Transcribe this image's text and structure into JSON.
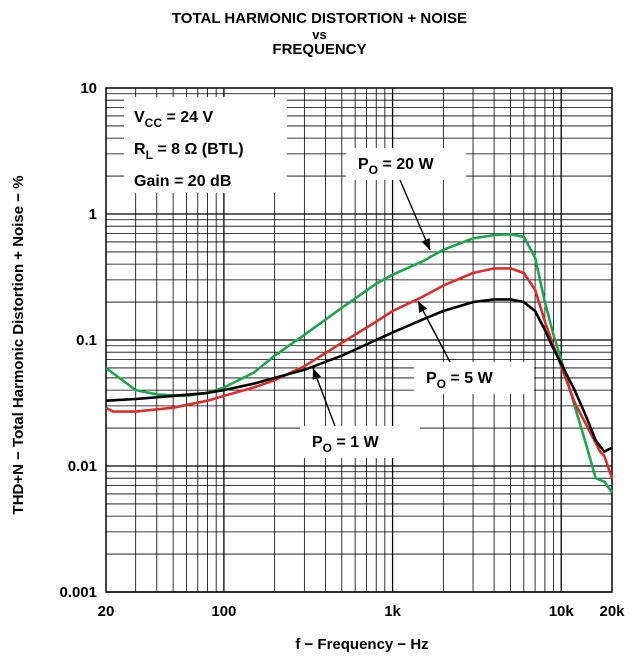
{
  "chart_data": {
    "type": "line",
    "title": [
      "TOTAL HARMONIC DISTORTION + NOISE",
      "vs",
      "FREQUENCY"
    ],
    "xlabel": "f − Frequency − Hz",
    "ylabel": "THD+N − Total Harmonic Distortion + Noise − %",
    "x_scale": "log",
    "y_scale": "log",
    "xlim": [
      20,
      20000
    ],
    "ylim": [
      0.001,
      10
    ],
    "x_ticks": [
      {
        "value": 20,
        "label": "20"
      },
      {
        "value": 100,
        "label": "100"
      },
      {
        "value": 1000,
        "label": "1k"
      },
      {
        "value": 10000,
        "label": "10k"
      },
      {
        "value": 20000,
        "label": "20k"
      }
    ],
    "y_ticks": [
      {
        "value": 0.001,
        "label": "0.001"
      },
      {
        "value": 0.01,
        "label": "0.01"
      },
      {
        "value": 0.1,
        "label": "0.1"
      },
      {
        "value": 1,
        "label": "1"
      },
      {
        "value": 10,
        "label": "10"
      }
    ],
    "grid": true,
    "conditions": {
      "vcc": {
        "main": "V",
        "sub": "CC",
        "rest": " = 24 V"
      },
      "rl": {
        "main": "R",
        "sub": "L",
        "rest": " = 8 Ω (BTL)"
      },
      "gain": "Gain = 20 dB"
    },
    "series": [
      {
        "name": "P_O = 20 W",
        "label": {
          "main": "P",
          "sub": "O",
          "rest": " = 20 W"
        },
        "color": "#1aa84a",
        "points": [
          [
            20,
            0.06
          ],
          [
            25,
            0.048
          ],
          [
            30,
            0.04
          ],
          [
            40,
            0.037
          ],
          [
            60,
            0.036
          ],
          [
            80,
            0.038
          ],
          [
            100,
            0.042
          ],
          [
            150,
            0.055
          ],
          [
            200,
            0.075
          ],
          [
            300,
            0.11
          ],
          [
            500,
            0.18
          ],
          [
            800,
            0.28
          ],
          [
            1000,
            0.33
          ],
          [
            1500,
            0.42
          ],
          [
            2000,
            0.52
          ],
          [
            3000,
            0.64
          ],
          [
            4000,
            0.68
          ],
          [
            5000,
            0.69
          ],
          [
            6000,
            0.66
          ],
          [
            7000,
            0.45
          ],
          [
            8000,
            0.2
          ],
          [
            9000,
            0.11
          ],
          [
            10000,
            0.07
          ],
          [
            12000,
            0.03
          ],
          [
            14000,
            0.015
          ],
          [
            16000,
            0.008
          ],
          [
            18000,
            0.0075
          ],
          [
            20000,
            0.0062
          ]
        ]
      },
      {
        "name": "P_O = 5 W",
        "label": {
          "main": "P",
          "sub": "O",
          "rest": " = 5 W"
        },
        "color": "#e02b2b",
        "points": [
          [
            20,
            0.029
          ],
          [
            22,
            0.027
          ],
          [
            30,
            0.027
          ],
          [
            50,
            0.029
          ],
          [
            80,
            0.033
          ],
          [
            100,
            0.036
          ],
          [
            150,
            0.042
          ],
          [
            200,
            0.048
          ],
          [
            300,
            0.062
          ],
          [
            500,
            0.095
          ],
          [
            800,
            0.14
          ],
          [
            1000,
            0.17
          ],
          [
            1500,
            0.22
          ],
          [
            2000,
            0.27
          ],
          [
            3000,
            0.34
          ],
          [
            4000,
            0.37
          ],
          [
            5000,
            0.37
          ],
          [
            6000,
            0.34
          ],
          [
            7000,
            0.25
          ],
          [
            8000,
            0.14
          ],
          [
            9000,
            0.09
          ],
          [
            10000,
            0.062
          ],
          [
            12000,
            0.032
          ],
          [
            15000,
            0.018
          ],
          [
            17000,
            0.013
          ],
          [
            18000,
            0.012
          ],
          [
            20000,
            0.008
          ]
        ]
      },
      {
        "name": "P_O = 1 W",
        "label": {
          "main": "P",
          "sub": "O",
          "rest": " = 1 W"
        },
        "color": "#000000",
        "points": [
          [
            20,
            0.033
          ],
          [
            30,
            0.034
          ],
          [
            50,
            0.036
          ],
          [
            80,
            0.038
          ],
          [
            100,
            0.04
          ],
          [
            150,
            0.045
          ],
          [
            200,
            0.05
          ],
          [
            300,
            0.058
          ],
          [
            500,
            0.075
          ],
          [
            800,
            0.1
          ],
          [
            1000,
            0.115
          ],
          [
            1500,
            0.145
          ],
          [
            2000,
            0.17
          ],
          [
            3000,
            0.2
          ],
          [
            4000,
            0.21
          ],
          [
            5000,
            0.21
          ],
          [
            6000,
            0.2
          ],
          [
            7000,
            0.17
          ],
          [
            8000,
            0.12
          ],
          [
            9000,
            0.085
          ],
          [
            10000,
            0.065
          ],
          [
            12000,
            0.04
          ],
          [
            14000,
            0.025
          ],
          [
            16000,
            0.016
          ],
          [
            18000,
            0.013
          ],
          [
            20000,
            0.014
          ]
        ]
      }
    ]
  }
}
